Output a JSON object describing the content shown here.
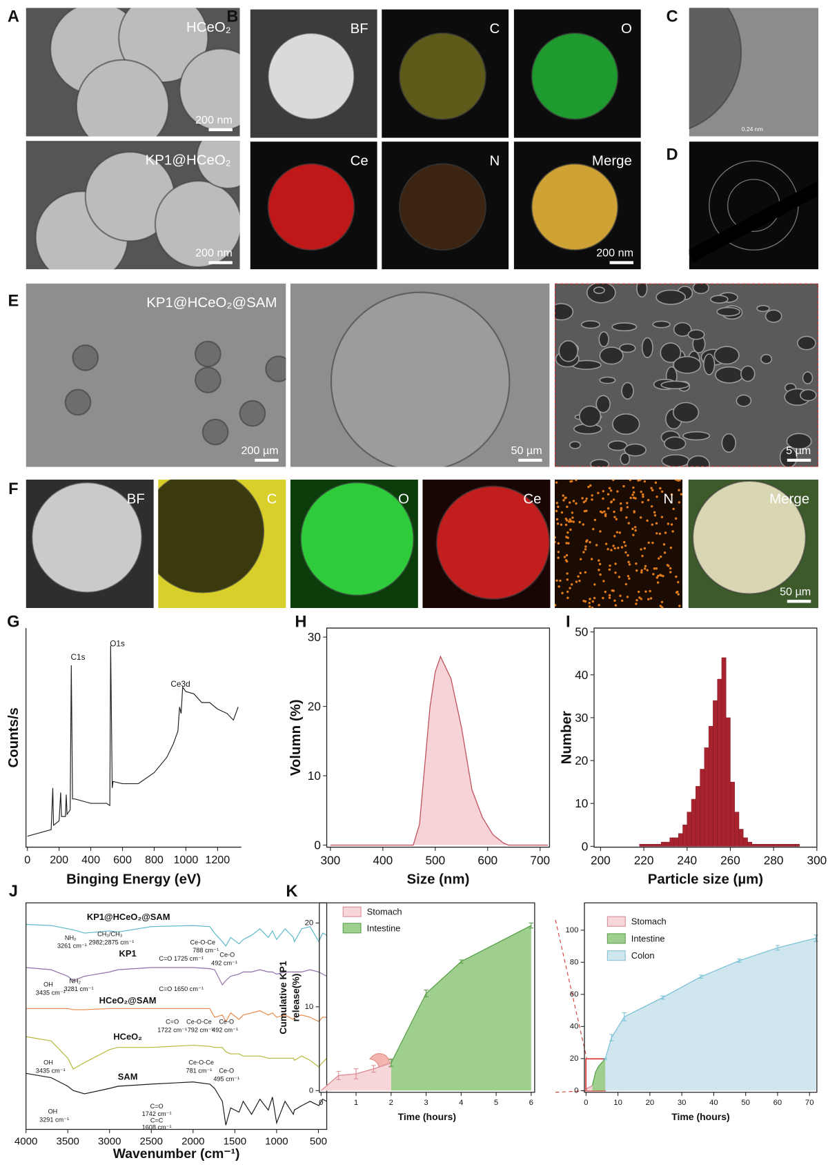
{
  "panels": [
    {
      "label": "A",
      "images": [
        {
          "caption": "HCeO₂",
          "scale_bar": "200 nm"
        },
        {
          "caption": "KP1@HCeO₂",
          "scale_bar": "200 nm"
        }
      ]
    },
    {
      "label": "B",
      "images": [
        {
          "caption": "BF"
        },
        {
          "caption": "C"
        },
        {
          "caption": "O"
        },
        {
          "caption": "Ce"
        },
        {
          "caption": "N"
        },
        {
          "caption": "Merge",
          "scale_bar": "200 nm"
        }
      ]
    },
    {
      "label": "C",
      "images": [
        {
          "annotation": "0.24 nm"
        }
      ]
    },
    {
      "label": "D"
    },
    {
      "label": "E",
      "images": [
        {
          "caption": "KP1@HCeO₂@SAM",
          "scale_bar": "200 µm"
        },
        {
          "scale_bar": "50 µm"
        },
        {
          "scale_bar": "5 µm"
        }
      ]
    },
    {
      "label": "F",
      "images": [
        {
          "caption": "BF"
        },
        {
          "caption": "C"
        },
        {
          "caption": "O"
        },
        {
          "caption": "Ce"
        },
        {
          "caption": "N"
        },
        {
          "caption": "Merge",
          "scale_bar": "50 µm"
        }
      ]
    }
  ],
  "chart_data": [
    {
      "panel": "G",
      "type": "line",
      "x_label": "Binging Energy (eV)",
      "y_label": "Counts/s",
      "color": "#222222",
      "x": [
        0,
        100,
        150,
        160,
        165,
        200,
        210,
        215,
        240,
        245,
        250,
        270,
        277,
        285,
        300,
        400,
        500,
        520,
        525,
        535,
        540,
        600,
        700,
        800,
        880,
        920,
        950,
        960,
        970,
        980,
        1000,
        1050,
        1100,
        1150,
        1200,
        1260,
        1300,
        1330
      ],
      "values": [
        5,
        7,
        8,
        27,
        10,
        12,
        25,
        14,
        14,
        24,
        15,
        17,
        83,
        22,
        22,
        20,
        20,
        19,
        92,
        27,
        30,
        29,
        29,
        34,
        41,
        47,
        53,
        64,
        61,
        73,
        71,
        70,
        66,
        66,
        63,
        61,
        58,
        64
      ],
      "xlim": [
        -9,
        1350
      ],
      "xticks": [
        0,
        200,
        400,
        600,
        800,
        1000,
        1200
      ],
      "ylim": [
        0,
        100
      ],
      "annotations": [
        "O1s",
        "C1s",
        "Ce3d"
      ]
    },
    {
      "panel": "H",
      "type": "area",
      "x_label": "Size (nm)",
      "y_label": "Volumn (%)",
      "color": "#c0505a",
      "fill": "#f5d3d7",
      "x": [
        300,
        458,
        470,
        490,
        500,
        510,
        530,
        550,
        570,
        590,
        610,
        630,
        640,
        715
      ],
      "values": [
        0,
        0,
        3,
        20,
        25,
        27.2,
        24,
        17,
        8,
        4,
        1.5,
        0.3,
        0,
        0
      ],
      "xlim": [
        293,
        718
      ],
      "xticks": [
        300,
        400,
        500,
        600,
        700
      ],
      "ylim": [
        -0.3,
        31.3
      ],
      "yticks": [
        0,
        10,
        20,
        30
      ]
    },
    {
      "panel": "I",
      "type": "histogram",
      "x_label": "Particle size (µm)",
      "y_label": "Number",
      "color": "#a8232e",
      "bins": [
        218,
        220,
        222,
        224,
        226,
        228,
        230,
        232,
        234,
        236,
        238,
        240,
        242,
        244,
        246,
        248,
        250,
        252,
        254,
        256,
        258,
        260,
        262,
        264,
        266,
        268,
        270,
        272,
        274,
        276,
        278,
        280,
        282,
        284,
        286,
        288,
        290,
        292
      ],
      "values": [
        0.5,
        0.5,
        0.5,
        0.5,
        0.5,
        1,
        1,
        2,
        2,
        3,
        5,
        8,
        11,
        14,
        18,
        23,
        28,
        34,
        39,
        44,
        30,
        15,
        8,
        4,
        2,
        1,
        0.5,
        0.5,
        0.5,
        0.5,
        0.5,
        0.5,
        0.5,
        0.5,
        0.5,
        0.5,
        0.5
      ],
      "xlim": [
        197,
        300
      ],
      "xticks": [
        200,
        220,
        240,
        260,
        280,
        300
      ],
      "ylim": [
        -0.2,
        50.9
      ],
      "yticks": [
        0,
        10,
        20,
        30,
        40,
        50
      ]
    },
    {
      "panel": "J",
      "type": "line",
      "x_label": "Wavenumber (cm⁻¹)",
      "x": [
        4000,
        3700,
        3500,
        3435,
        3300,
        3000,
        2900,
        2500,
        2000,
        1800,
        1742,
        1650,
        1608,
        1550,
        1450,
        1400,
        1300,
        1200,
        1100,
        1050,
        1000,
        900,
        800,
        788,
        700,
        600,
        495,
        450,
        400
      ],
      "series": [
        {
          "name": "KP1@HCeO₂@SAM",
          "color": "#5bb8c9",
          "values": [
            90,
            89.5,
            88,
            87.5,
            86,
            87,
            86.5,
            89,
            89.5,
            89,
            86,
            82,
            80,
            84,
            81,
            83,
            85,
            88,
            84,
            87,
            83,
            88,
            84,
            82,
            88,
            89,
            82,
            86,
            85
          ]
        },
        {
          "name": "KP1",
          "color": "#8e6fa8",
          "values": [
            70,
            69,
            66,
            64,
            66,
            68,
            69,
            70,
            70,
            69.5,
            69,
            62,
            64,
            66,
            67,
            68,
            68,
            69,
            68,
            68,
            67,
            68,
            68,
            68,
            68,
            69,
            68,
            67,
            66
          ]
        },
        {
          "name": "HCeO₂@SAM",
          "color": "#e8894a",
          "values": [
            51,
            51,
            51,
            50.5,
            50.5,
            51,
            51,
            51,
            51,
            51,
            47,
            48,
            45,
            49,
            46,
            48,
            49,
            50,
            48,
            49,
            47,
            48,
            46,
            47,
            48,
            47,
            45,
            47,
            47
          ]
        },
        {
          "name": "HCeO₂",
          "color": "#b5b83a",
          "values": [
            38,
            36,
            28,
            23,
            26,
            32,
            33,
            33,
            34,
            33.5,
            33,
            33,
            31,
            30,
            30,
            29,
            29,
            29,
            28,
            28,
            28,
            28,
            28,
            27,
            29,
            27,
            24,
            26,
            28
          ]
        },
        {
          "name": "SAM",
          "color": "#1a1a1a",
          "values": [
            21,
            19,
            15,
            13,
            11.5,
            14,
            15,
            16,
            17,
            16,
            14,
            8,
            -3,
            5,
            3,
            8,
            2,
            9,
            4,
            10,
            -2,
            8,
            2,
            4,
            6,
            8,
            6,
            9,
            8
          ]
        }
      ],
      "xlim": [
        4000,
        400
      ],
      "xticks": [
        4000,
        3500,
        3000,
        2500,
        2000,
        1500,
        1000,
        500
      ],
      "ylim": [
        -5,
        100
      ],
      "annotations": [
        "NH₂",
        "3261 cm⁻¹",
        "CH₃/CH₃",
        "2982;2875 cm⁻¹",
        "Ce-O-Ce",
        "788 cm⁻¹",
        "C=O 1725 cm⁻¹",
        "Ce-O",
        "492 cm⁻¹",
        "OH",
        "3435 cm⁻¹",
        "NH₂",
        "3281 cm⁻¹",
        "C=O 1650 cm⁻¹",
        "C=O",
        "1722 cm⁻¹",
        "Ce-O-Ce",
        "792 cm⁻¹",
        "Ce-O",
        "492 cm⁻¹",
        "OH",
        "3435 cm⁻¹",
        "Ce-O-Ce",
        "781 cm⁻¹",
        "Ce-O",
        "495 cm⁻¹",
        "OH",
        "3291 cm⁻¹",
        "C=O",
        "1742 cm⁻¹",
        "C=C",
        "1608 cm⁻¹"
      ]
    },
    {
      "panel": "K",
      "type": "area",
      "x_label": "Time (hours)",
      "y_label": [
        "Cumulative KP1",
        "release(%)"
      ],
      "legend": "upper left",
      "series": [
        {
          "name": "Stomach",
          "color": "#d98a92",
          "fill": "#f7d6d9",
          "x": [
            0,
            0.5,
            1,
            1.5,
            2
          ],
          "values": [
            0,
            1.8,
            2.0,
            2.6,
            3.3
          ],
          "errors": [
            0,
            0.5,
            0.6,
            0.4,
            0.5
          ]
        },
        {
          "name": "Intestine",
          "color": "#5aa04a",
          "fill": "#9fcf8f",
          "x": [
            2,
            3,
            4,
            6
          ],
          "values": [
            3.3,
            11.6,
            15.4,
            19.7
          ],
          "errors": [
            0.4,
            0.4,
            0.2,
            0.3
          ]
        }
      ],
      "xlim": [
        -0.05,
        6.1
      ],
      "xticks": [
        0,
        1,
        2,
        3,
        4,
        5,
        6
      ],
      "ylim": [
        -0.2,
        22.4
      ],
      "yticks": [
        0,
        10,
        20
      ]
    },
    {
      "type": "area",
      "x_label": "Time (hours)",
      "legend": "upper left",
      "series": [
        {
          "name": "Stomach",
          "color": "#d98a92",
          "fill": "#f7d6d9",
          "x": [
            0,
            0.5,
            1,
            1.5,
            2
          ],
          "values": [
            0,
            1.8,
            2.0,
            2.6,
            3.3
          ]
        },
        {
          "name": "Intestine",
          "color": "#5aa04a",
          "fill": "#9fcf8f",
          "x": [
            2,
            3,
            4,
            6
          ],
          "values": [
            3.3,
            11.6,
            15.4,
            19.7
          ]
        },
        {
          "name": "Colon",
          "color": "#7fc3d8",
          "fill": "#cfe6ee",
          "x": [
            6,
            8,
            12,
            24,
            36,
            48,
            60,
            72
          ],
          "values": [
            19.7,
            33,
            46,
            58,
            71,
            81,
            89,
            95
          ],
          "errors": [
            0.5,
            2,
            2.5,
            1,
            1,
            1,
            1.5,
            2
          ]
        }
      ],
      "xlim": [
        -0.5,
        72.3
      ],
      "xticks": [
        0,
        10,
        20,
        30,
        40,
        50,
        60,
        70
      ],
      "ylim": [
        -1,
        117
      ],
      "yticks": [
        0,
        20,
        40,
        60,
        80,
        100
      ]
    }
  ]
}
